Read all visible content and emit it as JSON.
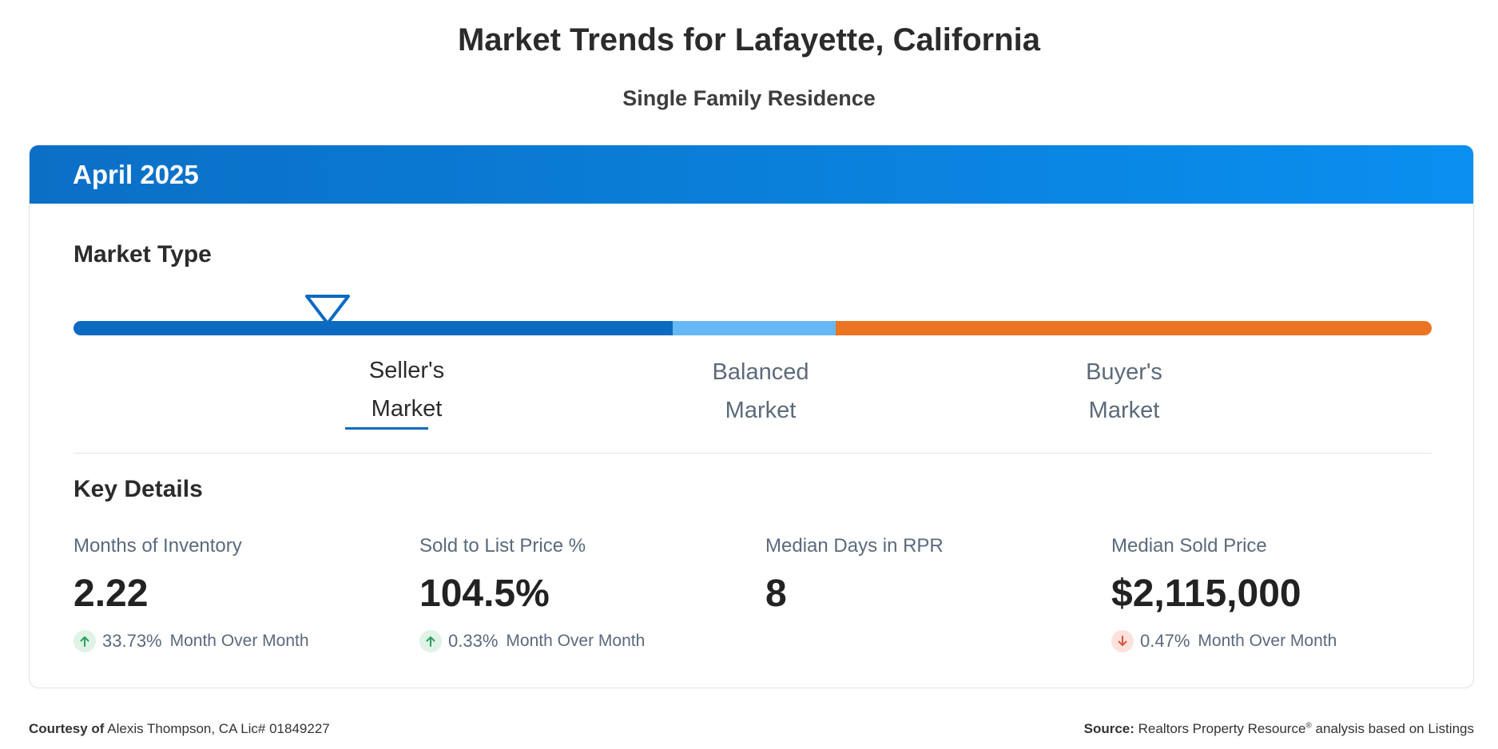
{
  "title": "Market Trends for Lafayette, California",
  "subtitle": "Single Family Residence",
  "card": {
    "period": "April 2025",
    "market_type": {
      "heading": "Market Type",
      "indicator_position": 0.19,
      "segments": [
        {
          "line1": "Seller's",
          "line2": "Market",
          "color": "#0c6ac1",
          "active": true
        },
        {
          "line1": "Balanced",
          "line2": "Market",
          "color": "#66b7f5",
          "active": false
        },
        {
          "line1": "Buyer's",
          "line2": "Market",
          "color": "#eb7423",
          "active": false
        }
      ]
    },
    "key_details": {
      "heading": "Key Details",
      "metrics": [
        {
          "label": "Months of Inventory",
          "value": "2.22",
          "change": "33.73%",
          "direction": "up",
          "change_label": "Month Over Month"
        },
        {
          "label": "Sold to List Price %",
          "value": "104.5%",
          "change": "0.33%",
          "direction": "up",
          "change_label": "Month Over Month"
        },
        {
          "label": "Median Days in RPR",
          "value": "8"
        },
        {
          "label": "Median Sold Price",
          "value": "$2,115,000",
          "change": "0.47%",
          "direction": "down",
          "change_label": "Month Over Month"
        }
      ]
    }
  },
  "footer": {
    "courtesy_label": "Courtesy of",
    "courtesy_text": "Alexis Thompson, CA Lic# 01849227",
    "source_label": "Source:",
    "source_text": "Realtors Property Resource",
    "source_reg": "®",
    "source_rest": "analysis based on Listings"
  },
  "colors": {
    "up_arrow": "#2e9e5b",
    "down_arrow": "#d9533a"
  },
  "icons": {
    "marker": "triangle-down-marker-icon",
    "up": "arrow-up-icon",
    "down": "arrow-down-icon"
  }
}
